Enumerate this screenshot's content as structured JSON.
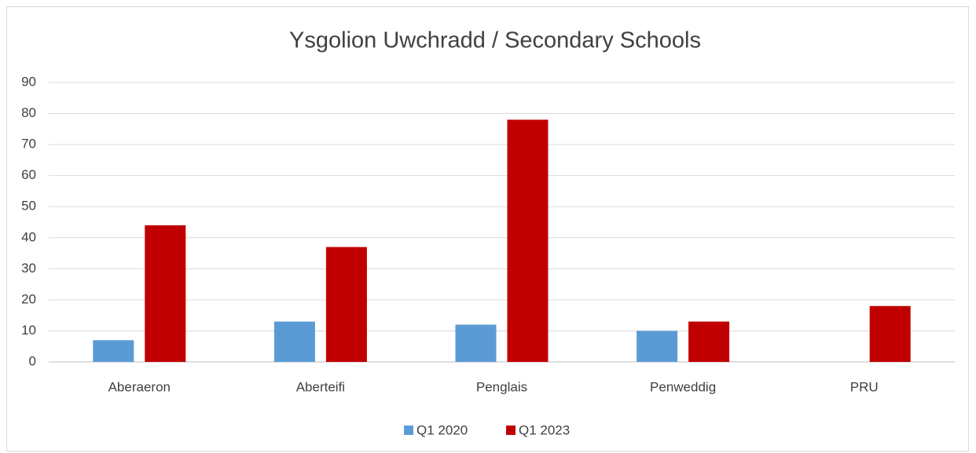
{
  "chart_data": {
    "type": "bar",
    "title": "Ysgolion Uwchradd / Secondary Schools",
    "categories": [
      "Aberaeron",
      "Aberteifi",
      "Penglais",
      "Penweddig",
      "PRU"
    ],
    "series": [
      {
        "name": "Q1 2020",
        "color": "#5b9bd5",
        "values": [
          7,
          13,
          12,
          10,
          0
        ]
      },
      {
        "name": "Q1 2023",
        "color": "#c00000",
        "values": [
          44,
          37,
          78,
          13,
          18
        ]
      }
    ],
    "ylim": [
      0,
      90
    ],
    "yticks": [
      0,
      10,
      20,
      30,
      40,
      50,
      60,
      70,
      80,
      90
    ],
    "grid": true,
    "legend": "bottom"
  }
}
